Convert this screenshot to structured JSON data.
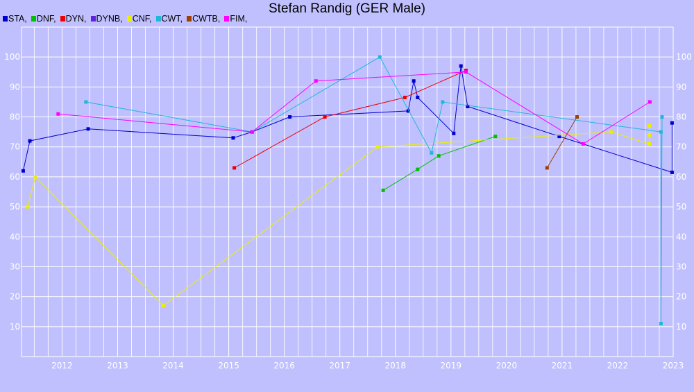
{
  "title": "Stefan Randig (GER Male)",
  "colors": {
    "background": "#c0c0ff",
    "grid": "#ffffff",
    "tick_text": "#ffffff"
  },
  "chart_data": {
    "type": "line",
    "title": "Stefan Randig (GER Male)",
    "xlabel": "",
    "ylabel": "",
    "xlim": [
      2011.27,
      2023.0
    ],
    "ylim": [
      0,
      110
    ],
    "x_ticks": [
      "2012",
      "2013",
      "2014",
      "2015",
      "2016",
      "2017",
      "2018",
      "2019",
      "2020",
      "2021",
      "2022",
      "2023"
    ],
    "y_ticks": [
      "10",
      "20",
      "30",
      "40",
      "50",
      "60",
      "70",
      "80",
      "90",
      "100"
    ],
    "grid": true,
    "legend_position": "top-left",
    "series": [
      {
        "name": "STA",
        "color": "#0000cc",
        "points": [
          [
            2011.3,
            62
          ],
          [
            2011.42,
            72
          ],
          [
            2012.47,
            76
          ],
          [
            2015.08,
            73
          ],
          [
            2015.42,
            75
          ],
          [
            2016.1,
            80
          ],
          [
            2018.23,
            82
          ],
          [
            2018.33,
            92
          ],
          [
            2018.4,
            86.5
          ],
          [
            2019.05,
            74.5
          ],
          [
            2019.18,
            97
          ],
          [
            2019.3,
            83.5
          ],
          [
            2020.95,
            73.5
          ],
          [
            2022.98,
            61.5
          ],
          [
            2022.98,
            78
          ]
        ]
      },
      {
        "name": "DNF",
        "color": "#00c000",
        "points": [
          [
            2017.78,
            55.5
          ],
          [
            2018.4,
            62.5
          ],
          [
            2018.78,
            67
          ],
          [
            2019.8,
            73.5
          ]
        ]
      },
      {
        "name": "DYN",
        "color": "#ee0000",
        "points": [
          [
            2015.1,
            63
          ],
          [
            2016.73,
            80
          ],
          [
            2018.17,
            86.5
          ],
          [
            2019.27,
            95.5
          ]
        ]
      },
      {
        "name": "DYNB",
        "color": "#6020e0",
        "points": []
      },
      {
        "name": "CNF",
        "color": "#eeee00",
        "points": [
          [
            2011.38,
            50
          ],
          [
            2011.52,
            60
          ],
          [
            2013.82,
            17
          ],
          [
            2017.68,
            70
          ],
          [
            2021.88,
            75
          ],
          [
            2022.57,
            71
          ],
          [
            2022.57,
            74
          ],
          [
            2022.57,
            77
          ]
        ]
      },
      {
        "name": "CWT",
        "color": "#20b8d8",
        "points": [
          [
            2012.43,
            85
          ],
          [
            2015.42,
            75
          ],
          [
            2017.72,
            100
          ],
          [
            2018.65,
            68
          ],
          [
            2018.85,
            85
          ],
          [
            2022.78,
            75
          ],
          [
            2022.78,
            11
          ],
          [
            2022.8,
            80
          ]
        ]
      },
      {
        "name": "CWTB",
        "color": "#a04000",
        "points": [
          [
            2020.73,
            63
          ],
          [
            2021.27,
            80
          ]
        ]
      },
      {
        "name": "FIM",
        "color": "#ff00ff",
        "points": [
          [
            2011.93,
            81
          ],
          [
            2015.42,
            75
          ],
          [
            2016.57,
            92
          ],
          [
            2019.27,
            95
          ],
          [
            2021.38,
            71
          ],
          [
            2022.58,
            85
          ]
        ]
      }
    ]
  }
}
